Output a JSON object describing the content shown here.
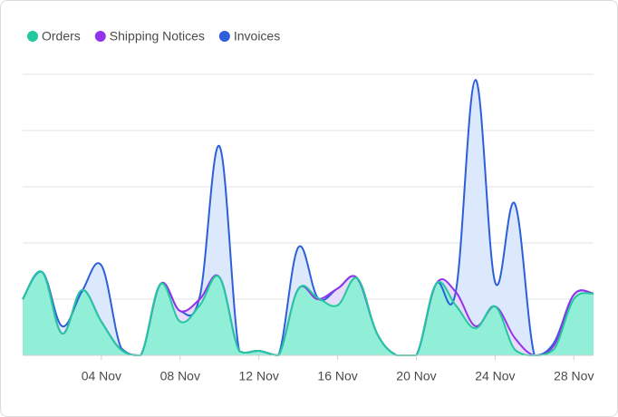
{
  "chart_data": {
    "type": "area",
    "categories": [
      null,
      null,
      null,
      null,
      "04 Nov",
      null,
      null,
      null,
      "08 Nov",
      null,
      null,
      null,
      "12 Nov",
      null,
      null,
      null,
      "16 Nov",
      null,
      null,
      null,
      "20 Nov",
      null,
      null,
      null,
      "24 Nov",
      null,
      null,
      null,
      "28 Nov",
      null
    ],
    "series": [
      {
        "name": "Invoices",
        "color": "#2c5fd9",
        "fill": "#dce8fb",
        "values": [
          1.0,
          1.48,
          0.52,
          1.13,
          1.6,
          0.13,
          0,
          1.27,
          0.79,
          1.05,
          3.72,
          0.08,
          0.08,
          0,
          1.92,
          1.02,
          1.19,
          1.37,
          0.39,
          0,
          0,
          1.27,
          1.13,
          4.9,
          1.3,
          2.7,
          0,
          0.23,
          1.08,
          1.1
        ]
      },
      {
        "name": "Shipping Notices",
        "color": "#9333ea",
        "fill": "#e9dcfb",
        "values": [
          1.0,
          1.48,
          0.39,
          1.16,
          0.6,
          0.1,
          0,
          1.27,
          0.79,
          1.0,
          1.39,
          0.08,
          0.08,
          0,
          1.18,
          1.0,
          1.19,
          1.37,
          0.39,
          0,
          0,
          1.27,
          1.13,
          0.52,
          0.87,
          0.31,
          0,
          0.18,
          1.08,
          1.1
        ]
      },
      {
        "name": "Orders",
        "color": "#22c99e",
        "fill": "#92efd7",
        "values": [
          1.0,
          1.48,
          0.39,
          1.16,
          0.6,
          0.1,
          0,
          1.27,
          0.6,
          0.89,
          1.39,
          0.08,
          0.08,
          0,
          1.18,
          1.02,
          0.89,
          1.37,
          0.39,
          0,
          0,
          1.27,
          0.89,
          0.48,
          0.87,
          0.1,
          0,
          0.11,
          1.0,
          1.1
        ]
      }
    ],
    "legend_order": [
      "Orders",
      "Shipping Notices",
      "Invoices"
    ],
    "ylim": [
      0,
      5
    ],
    "yticks": [
      0,
      1,
      2,
      3,
      4,
      5
    ],
    "grid": true
  }
}
